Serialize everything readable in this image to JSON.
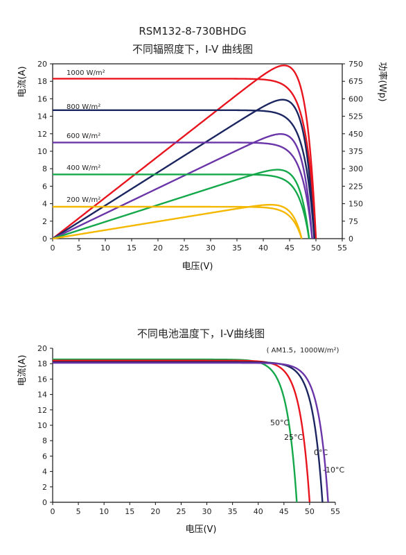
{
  "chart_data": [
    {
      "type": "line",
      "title": "RSM132-8-730BHDG",
      "subtitle": "不同辐照度下，I-V 曲线图",
      "xlabel": "电压(V)",
      "ylabel": "电流(A)",
      "y2label": "功率(Wp)",
      "xlim": [
        0,
        55
      ],
      "ylim": [
        0,
        20
      ],
      "y2lim": [
        0,
        750
      ],
      "xticks": [
        0,
        5,
        10,
        15,
        20,
        25,
        30,
        35,
        40,
        45,
        50,
        55
      ],
      "yticks": [
        0,
        2,
        4,
        6,
        8,
        10,
        12,
        14,
        16,
        18,
        20
      ],
      "y2ticks": [
        0,
        75,
        150,
        225,
        300,
        375,
        450,
        525,
        600,
        675,
        750
      ],
      "grid": false,
      "series": [
        {
          "name": "1000 W/m²",
          "color": "#e8141e",
          "isc": 18.3,
          "voc": 50.0,
          "pmax": 730,
          "vmp": 42.0
        },
        {
          "name": "800 W/m²",
          "color": "#1b2560",
          "isc": 14.7,
          "voc": 49.7,
          "pmax": 588,
          "vmp": 42.0
        },
        {
          "name": "600 W/m²",
          "color": "#6a35a8",
          "isc": 11.0,
          "voc": 49.3,
          "pmax": 445,
          "vmp": 42.0
        },
        {
          "name": "400 W/m²",
          "color": "#14a84a",
          "isc": 7.35,
          "voc": 48.7,
          "pmax": 295,
          "vmp": 42.0
        },
        {
          "name": "200 W/m²",
          "color": "#f5b800",
          "isc": 3.65,
          "voc": 47.3,
          "pmax": 145,
          "vmp": 42.0
        }
      ]
    },
    {
      "type": "line",
      "title": "不同电池温度下，I-V曲线图",
      "annotation": "( AM1.5，1000W/m²)",
      "xlabel": "电压(V)",
      "ylabel": "电流(A)",
      "xlim": [
        0,
        55
      ],
      "ylim": [
        0,
        20
      ],
      "xticks": [
        0,
        5,
        10,
        15,
        20,
        25,
        30,
        35,
        40,
        45,
        50,
        55
      ],
      "yticks": [
        0,
        2,
        4,
        6,
        8,
        10,
        12,
        14,
        16,
        18,
        20
      ],
      "grid": false,
      "series": [
        {
          "name": "50°C",
          "color": "#14a84a",
          "isc": 18.55,
          "voc": 47.5
        },
        {
          "name": "25°C",
          "color": "#e8141e",
          "isc": 18.4,
          "voc": 50.0
        },
        {
          "name": "0°C",
          "color": "#1b2560",
          "isc": 18.2,
          "voc": 52.5
        },
        {
          "name": "-10°C",
          "color": "#6a35a8",
          "isc": 18.1,
          "voc": 53.6
        }
      ]
    }
  ]
}
